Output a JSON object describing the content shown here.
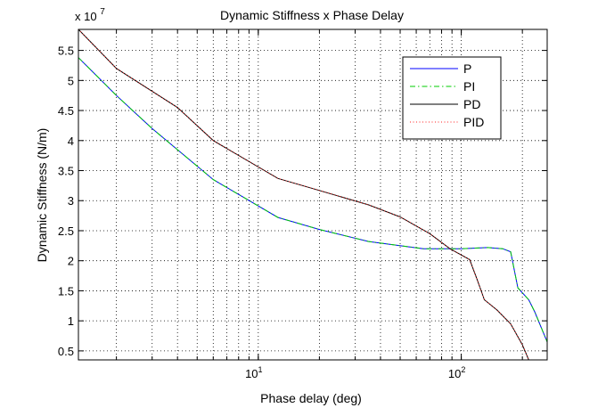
{
  "chart_data": {
    "type": "line",
    "title": "Dynamic Stiffness x Phase Delay",
    "xlabel": "Phase delay (deg)",
    "ylabel": "Dynamic Stiffness (N/m)",
    "x_scale": "log",
    "xlim": [
      1.3,
      265
    ],
    "ylim": [
      0.35,
      5.85
    ],
    "y_multiplier_label": "x 10",
    "y_multiplier_exponent": "7",
    "x_ticks": [
      {
        "value": 10,
        "base": "10",
        "exp": "1"
      },
      {
        "value": 100,
        "base": "10",
        "exp": "2"
      }
    ],
    "y_ticks": [
      0.5,
      1,
      1.5,
      2,
      2.5,
      3,
      3.5,
      4,
      4.5,
      5,
      5.5
    ],
    "y_tick_labels": [
      "0.5",
      "1",
      "1.5",
      "2",
      "2.5",
      "3",
      "3.5",
      "4",
      "4.5",
      "5",
      "5.5"
    ],
    "grid": "dotted, major and minor",
    "legend_position": "top-right",
    "series": [
      {
        "name": "P",
        "color": "#0000ff",
        "dash": "solid",
        "points": [
          [
            1.3,
            5.38
          ],
          [
            2,
            4.75
          ],
          [
            3,
            4.2
          ],
          [
            6,
            3.35
          ],
          [
            12.5,
            2.72
          ],
          [
            20,
            2.52
          ],
          [
            35,
            2.32
          ],
          [
            65,
            2.2
          ],
          [
            100,
            2.2
          ],
          [
            135,
            2.22
          ],
          [
            160,
            2.2
          ],
          [
            175,
            2.15
          ],
          [
            190,
            1.55
          ],
          [
            215,
            1.35
          ],
          [
            230,
            1.15
          ],
          [
            265,
            0.65
          ]
        ]
      },
      {
        "name": "PI",
        "color": "#00cc00",
        "dash": "dashdot",
        "points": [
          [
            1.3,
            5.38
          ],
          [
            2,
            4.75
          ],
          [
            3,
            4.2
          ],
          [
            6,
            3.35
          ],
          [
            12.5,
            2.72
          ],
          [
            20,
            2.52
          ],
          [
            35,
            2.32
          ],
          [
            65,
            2.2
          ],
          [
            100,
            2.2
          ],
          [
            135,
            2.22
          ],
          [
            160,
            2.2
          ],
          [
            175,
            2.15
          ],
          [
            190,
            1.55
          ],
          [
            215,
            1.35
          ],
          [
            230,
            1.15
          ],
          [
            265,
            0.65
          ]
        ]
      },
      {
        "name": "PD",
        "color": "#000000",
        "dash": "solid",
        "points": [
          [
            1.3,
            5.85
          ],
          [
            2,
            5.2
          ],
          [
            4,
            4.55
          ],
          [
            6,
            4.0
          ],
          [
            12.5,
            3.37
          ],
          [
            20,
            3.17
          ],
          [
            35,
            2.93
          ],
          [
            50,
            2.73
          ],
          [
            70,
            2.45
          ],
          [
            88,
            2.2
          ],
          [
            110,
            2.02
          ],
          [
            120,
            1.68
          ],
          [
            130,
            1.35
          ],
          [
            150,
            1.18
          ],
          [
            175,
            0.95
          ],
          [
            200,
            0.6
          ],
          [
            215,
            0.35
          ]
        ]
      },
      {
        "name": "PID",
        "color": "#ff2020",
        "dash": "dotted",
        "points": [
          [
            1.3,
            5.85
          ],
          [
            2,
            5.2
          ],
          [
            4,
            4.55
          ],
          [
            6,
            4.0
          ],
          [
            12.5,
            3.37
          ],
          [
            20,
            3.17
          ],
          [
            35,
            2.93
          ],
          [
            50,
            2.73
          ],
          [
            70,
            2.45
          ],
          [
            88,
            2.2
          ],
          [
            110,
            2.02
          ],
          [
            120,
            1.68
          ],
          [
            130,
            1.35
          ],
          [
            150,
            1.18
          ],
          [
            175,
            0.95
          ],
          [
            200,
            0.6
          ],
          [
            215,
            0.35
          ]
        ]
      }
    ]
  }
}
